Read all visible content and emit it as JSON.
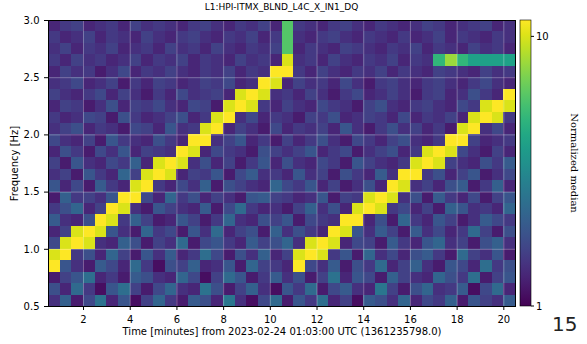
{
  "chart_data": {
    "type": "heatmap",
    "title": "L1:HPI-ITMX_BLND_L4C_X_IN1_DQ",
    "x_label": "Time [minutes] from 2023-02-24 01:03:00 UTC (1361235798.0)",
    "y_label": "Frequency [Hz]",
    "annotation": "15",
    "xlim": [
      0.5,
      20.5
    ],
    "ylim": [
      0.5,
      3.0
    ],
    "xticks": [
      2,
      4,
      6,
      8,
      10,
      12,
      14,
      16,
      18,
      20
    ],
    "yticks": [
      0.5,
      {
        "value": 1,
        "label": "1.0"
      },
      1.5,
      {
        "value": 2,
        "label": "2.0"
      },
      2.5,
      {
        "value": 3,
        "label": "3.0"
      }
    ],
    "grid": true,
    "x_bins": [
      0.5,
      1.0,
      1.5,
      2.0,
      2.5,
      3.0,
      3.5,
      4.0,
      4.5,
      5.0,
      5.5,
      6.0,
      6.5,
      7.0,
      7.5,
      8.0,
      8.5,
      9.0,
      9.5,
      10.0,
      10.5,
      11.0,
      11.5,
      12.0,
      12.5,
      13.0,
      13.5,
      14.0,
      14.5,
      15.0,
      15.5,
      16.0,
      16.5,
      17.0,
      17.5,
      18.0,
      18.5,
      19.0,
      19.5,
      20.0,
      20.5
    ],
    "y_bins": [
      0.5,
      0.6,
      0.7,
      0.8,
      0.9,
      1.0,
      1.1,
      1.2,
      1.3,
      1.4,
      1.5,
      1.6,
      1.7,
      1.8,
      1.9,
      2.0,
      2.1,
      2.2,
      2.3,
      2.4,
      2.5,
      2.6,
      2.7,
      2.8,
      2.9,
      3.0
    ],
    "cells": [
      [
        1.4,
        2.1,
        1.2,
        1.7,
        2.5,
        1.3,
        1.9,
        1.1,
        1.6,
        2.2,
        1.5,
        1.2,
        2.0,
        1.8,
        1.3,
        2.6,
        1.4,
        1.1,
        1.7,
        2.3,
        1.2,
        1.9,
        1.5,
        2.4,
        1.3,
        1.6,
        1.1,
        2.0,
        1.8,
        1.4,
        2.2,
        1.3,
        1.7,
        1.5,
        2.1,
        1.2,
        1.9,
        1.6,
        1.4,
        2.0
      ],
      [
        1.8,
        1.3,
        2.3,
        1.5,
        1.1,
        1.9,
        2.4,
        1.6,
        1.2,
        1.7,
        2.2,
        1.4,
        1.3,
        2.5,
        1.8,
        1.2,
        1.6,
        2.1,
        1.4,
        1.1,
        1.9,
        1.5,
        2.3,
        1.2,
        1.7,
        2.0,
        1.4,
        1.3,
        2.6,
        1.6,
        1.2,
        1.8,
        2.2,
        1.4,
        1.5,
        2.0,
        1.1,
        1.7,
        2.3,
        1.3
      ],
      [
        1.2,
        1.6,
        1.9,
        2.4,
        1.3,
        1.5,
        1.2,
        2.0,
        1.8,
        1.4,
        1.3,
        2.2,
        1.7,
        1.1,
        1.6,
        2.3,
        1.9,
        1.2,
        1.5,
        2.0,
        1.4,
        1.8,
        1.2,
        1.6,
        2.5,
        1.3,
        1.9,
        1.7,
        1.2,
        2.1,
        1.6,
        1.4,
        1.3,
        2.2,
        1.8,
        1.5,
        2.4,
        1.2,
        1.6,
        1.9
      ],
      [
        16,
        1.9,
        1.4,
        1.2,
        2.0,
        1.7,
        1.3,
        2.3,
        1.5,
        1.1,
        1.8,
        1.6,
        2.1,
        1.3,
        1.4,
        1.9,
        1.2,
        2.2,
        1.6,
        1.5,
        1.3,
        16,
        1.7,
        1.4,
        2.0,
        1.2,
        1.8,
        1.5,
        2.3,
        1.3,
        1.6,
        2.1,
        1.4,
        1.2,
        1.9,
        1.7,
        1.3,
        2.4,
        1.5,
        1.8
      ],
      [
        10,
        16,
        1.5,
        1.8,
        1.3,
        2.2,
        1.6,
        1.2,
        1.9,
        1.4,
        2.0,
        1.3,
        1.5,
        2.4,
        1.7,
        1.2,
        1.8,
        1.4,
        2.1,
        1.3,
        1.6,
        10,
        16,
        10,
        1.5,
        1.9,
        1.2,
        2.2,
        1.4,
        1.7,
        1.3,
        1.8,
        2.0,
        1.5,
        1.2,
        2.3,
        1.6,
        1.4,
        1.9,
        1.2
      ],
      [
        1.7,
        10,
        16,
        10,
        1.4,
        1.3,
        2.1,
        1.8,
        1.2,
        1.6,
        1.4,
        2.3,
        1.2,
        1.7,
        1.9,
        1.5,
        1.3,
        2.0,
        1.6,
        1.8,
        2.2,
        1.4,
        10,
        16,
        10,
        1.3,
        1.7,
        1.6,
        1.2,
        2.0,
        1.5,
        1.3,
        1.9,
        2.2,
        1.4,
        1.6,
        1.2,
        1.8,
        2.1,
        1.4
      ],
      [
        1.3,
        1.6,
        10,
        16,
        10,
        1.9,
        1.4,
        1.2,
        2.2,
        1.5,
        1.7,
        1.2,
        1.9,
        1.4,
        2.3,
        1.3,
        1.6,
        1.8,
        1.2,
        2.1,
        1.4,
        1.8,
        1.5,
        1.3,
        16,
        10,
        1.9,
        1.4,
        2.0,
        1.6,
        1.2,
        2.0,
        1.4,
        1.7,
        1.3,
        1.5,
        2.3,
        1.6,
        1.2,
        1.8
      ],
      [
        2.0,
        1.4,
        1.3,
        1.8,
        16,
        10,
        1.5,
        2.1,
        1.6,
        1.2,
        1.3,
        1.9,
        1.6,
        1.2,
        1.5,
        2.2,
        1.4,
        1.3,
        1.8,
        1.6,
        1.9,
        1.2,
        1.7,
        1.5,
        1.4,
        16,
        16,
        1.3,
        1.8,
        1.2,
        2.2,
        1.5,
        1.3,
        1.9,
        1.6,
        1.2,
        1.4,
        2.0,
        1.7,
        1.5
      ],
      [
        1.5,
        1.8,
        2.2,
        1.3,
        1.6,
        16,
        10,
        1.4,
        1.2,
        1.9,
        1.6,
        1.4,
        1.3,
        2.0,
        1.2,
        1.7,
        2.3,
        1.5,
        1.3,
        1.4,
        1.2,
        1.6,
        2.1,
        1.4,
        1.8,
        1.3,
        10,
        16,
        10,
        1.5,
        1.7,
        1.3,
        1.6,
        1.2,
        2.1,
        1.9,
        1.4,
        1.5,
        1.3,
        2.2
      ],
      [
        1.2,
        2.1,
        1.5,
        1.6,
        1.4,
        1.9,
        16,
        16,
        1.7,
        1.3,
        2.2,
        1.5,
        1.8,
        1.3,
        1.6,
        1.4,
        1.2,
        1.9,
        2.0,
        1.6,
        1.5,
        1.3,
        1.4,
        1.9,
        1.2,
        1.6,
        1.5,
        10,
        16,
        10,
        1.4,
        1.8,
        1.2,
        2.0,
        1.5,
        1.3,
        1.7,
        1.2,
        1.6,
        1.9
      ],
      [
        1.9,
        1.3,
        1.7,
        1.2,
        2.0,
        1.5,
        1.3,
        10,
        16,
        1.5,
        1.3,
        1.7,
        1.4,
        2.1,
        1.2,
        1.8,
        1.6,
        1.4,
        1.3,
        2.2,
        1.7,
        1.5,
        1.9,
        1.3,
        1.6,
        1.2,
        1.4,
        1.8,
        1.3,
        16,
        10,
        1.4,
        1.6,
        1.3,
        1.8,
        2.0,
        1.2,
        1.5,
        2.1,
        1.3
      ],
      [
        1.4,
        1.6,
        1.2,
        1.9,
        1.5,
        1.3,
        2.2,
        1.6,
        10,
        16,
        10,
        1.3,
        1.6,
        1.5,
        1.9,
        1.2,
        1.7,
        2.0,
        1.4,
        1.5,
        1.3,
        1.9,
        1.4,
        1.6,
        1.2,
        1.8,
        1.5,
        1.3,
        2.0,
        1.4,
        16,
        16,
        1.5,
        1.8,
        1.3,
        1.6,
        1.9,
        1.2,
        1.4,
        1.7
      ],
      [
        1.6,
        1.2,
        1.9,
        1.4,
        1.3,
        1.7,
        1.5,
        2.1,
        1.3,
        10,
        16,
        10,
        1.4,
        1.8,
        1.3,
        1.6,
        1.2,
        1.5,
        1.9,
        1.3,
        1.8,
        1.4,
        1.3,
        1.7,
        1.5,
        1.2,
        1.9,
        1.6,
        1.4,
        1.3,
        1.5,
        10,
        16,
        10,
        1.6,
        1.4,
        1.3,
        1.8,
        1.5,
        2.0
      ],
      [
        1.3,
        1.8,
        1.5,
        1.2,
        1.7,
        1.4,
        1.9,
        1.3,
        1.6,
        1.5,
        1.4,
        16,
        10,
        1.3,
        1.7,
        1.5,
        1.4,
        1.2,
        1.8,
        1.6,
        1.4,
        1.6,
        1.9,
        1.3,
        1.5,
        1.7,
        1.2,
        1.4,
        1.6,
        1.8,
        1.3,
        1.5,
        10,
        16,
        10,
        1.7,
        1.4,
        1.2,
        1.6,
        1.3
      ],
      [
        1.7,
        1.4,
        1.3,
        1.6,
        1.2,
        1.9,
        1.5,
        1.4,
        1.3,
        1.8,
        1.5,
        1.3,
        16,
        16,
        1.4,
        1.6,
        1.9,
        1.3,
        1.5,
        1.2,
        1.6,
        1.3,
        1.5,
        1.8,
        1.4,
        1.2,
        1.7,
        1.5,
        1.3,
        1.6,
        1.8,
        1.4,
        1.3,
        1.5,
        16,
        16,
        1.6,
        1.3,
        1.4,
        1.5
      ],
      [
        1.4,
        1.6,
        1.8,
        1.3,
        1.5,
        1.4,
        1.2,
        1.7,
        1.6,
        1.3,
        1.9,
        1.4,
        1.5,
        10,
        16,
        1.3,
        1.6,
        1.4,
        1.2,
        1.7,
        1.3,
        1.5,
        1.4,
        1.6,
        1.3,
        1.9,
        1.4,
        1.2,
        1.5,
        1.8,
        1.4,
        1.6,
        1.3,
        1.5,
        1.2,
        10,
        16,
        1.4,
        1.7,
        1.3
      ],
      [
        1.5,
        1.3,
        1.4,
        1.7,
        1.6,
        1.2,
        1.8,
        1.5,
        1.3,
        1.4,
        1.6,
        1.8,
        1.3,
        1.5,
        10,
        16,
        1.4,
        1.7,
        1.3,
        1.5,
        1.4,
        1.2,
        1.6,
        1.5,
        1.8,
        1.3,
        1.4,
        1.6,
        1.5,
        1.3,
        1.7,
        1.3,
        1.5,
        1.4,
        1.6,
        1.3,
        10,
        16,
        10,
        1.5
      ],
      [
        1.3,
        1.6,
        1.5,
        1.2,
        1.4,
        1.8,
        1.3,
        1.6,
        1.5,
        1.7,
        1.4,
        1.3,
        1.7,
        1.6,
        1.2,
        10,
        16,
        10,
        1.5,
        1.3,
        1.6,
        1.4,
        1.3,
        1.7,
        1.5,
        1.4,
        1.2,
        1.6,
        1.8,
        1.4,
        1.3,
        1.5,
        1.6,
        1.4,
        1.3,
        1.7,
        1.5,
        10,
        16,
        10
      ],
      [
        1.6,
        1.4,
        1.3,
        1.5,
        1.7,
        1.3,
        1.6,
        1.4,
        1.2,
        1.5,
        1.3,
        1.7,
        1.4,
        1.5,
        1.6,
        1.3,
        10,
        16,
        10,
        1.4,
        1.5,
        1.3,
        1.6,
        1.4,
        1.2,
        1.5,
        1.7,
        1.3,
        1.4,
        1.6,
        1.4,
        1.2,
        1.5,
        1.6,
        1.3,
        1.4,
        1.8,
        1.5,
        1.3,
        16
      ],
      [
        1.4,
        1.5,
        1.7,
        1.3,
        1.4,
        1.6,
        1.2,
        1.5,
        1.3,
        1.6,
        1.5,
        1.3,
        1.4,
        1.6,
        1.5,
        1.7,
        1.3,
        1.4,
        16,
        10,
        1.3,
        1.6,
        1.4,
        1.5,
        1.3,
        1.7,
        1.4,
        1.2,
        1.5,
        1.6,
        1.4,
        1.3,
        1.5,
        1.6,
        1.4,
        1.3,
        1.5,
        1.7,
        1.4,
        1.3
      ],
      [
        1.3,
        1.6,
        1.4,
        1.5,
        1.2,
        1.4,
        1.7,
        1.3,
        1.5,
        1.4,
        1.6,
        1.4,
        1.3,
        1.5,
        1.4,
        1.6,
        1.3,
        1.5,
        1.4,
        16,
        16,
        1.5,
        1.3,
        1.6,
        1.4,
        1.3,
        1.5,
        1.4,
        1.6,
        1.3,
        1.5,
        1.4,
        1.3,
        1.6,
        1.5,
        1.4,
        1.3,
        1.6,
        1.4,
        1.5
      ],
      [
        1.5,
        1.3,
        1.6,
        1.4,
        1.5,
        1.3,
        1.4,
        1.6,
        1.3,
        1.5,
        1.4,
        1.6,
        1.3,
        1.5,
        1.4,
        1.3,
        1.6,
        1.4,
        1.5,
        1.3,
        10,
        1.4,
        1.5,
        1.3,
        1.6,
        1.4,
        1.3,
        1.5,
        1.4,
        1.6,
        1.3,
        1.5,
        1.4,
        5,
        8,
        5,
        4,
        4,
        4,
        4
      ],
      [
        1.4,
        1.6,
        1.3,
        1.5,
        1.4,
        1.6,
        1.3,
        1.4,
        1.5,
        1.3,
        1.6,
        1.4,
        1.5,
        1.3,
        1.6,
        1.4,
        1.3,
        1.5,
        1.4,
        1.6,
        6,
        1.3,
        1.5,
        1.4,
        1.3,
        1.6,
        1.5,
        1.4,
        1.3,
        1.5,
        1.4,
        1.6,
        1.3,
        1.5,
        1.4,
        1.3,
        1.6,
        1.4,
        1.5,
        1.3
      ],
      [
        1.5,
        1.3,
        1.4,
        1.6,
        1.3,
        1.5,
        1.4,
        1.3,
        1.6,
        1.4,
        1.3,
        1.5,
        1.6,
        1.4,
        1.3,
        1.5,
        1.4,
        1.6,
        1.3,
        1.5,
        6,
        1.4,
        1.3,
        1.5,
        1.6,
        1.4,
        1.3,
        1.5,
        1.4,
        1.3,
        1.5,
        1.3,
        1.4,
        1.6,
        1.3,
        1.5,
        1.4,
        1.3,
        1.5,
        1.4
      ],
      [
        1.3,
        1.5,
        1.6,
        1.3,
        1.4,
        1.5,
        1.3,
        1.6,
        1.4,
        1.5,
        1.4,
        1.3,
        1.5,
        1.6,
        1.4,
        1.3,
        1.5,
        1.4,
        1.6,
        1.3,
        6,
        1.5,
        1.4,
        1.3,
        1.5,
        1.6,
        1.4,
        1.3,
        1.5,
        1.4,
        1.3,
        1.4,
        1.6,
        1.5,
        1.3,
        1.4,
        1.5,
        1.6,
        1.3,
        1.4
      ]
    ],
    "colorbar": {
      "label": "Normalized median",
      "range": [
        1,
        11.5
      ],
      "ticks": [
        1,
        10
      ],
      "log": true,
      "color": "viridis"
    }
  }
}
